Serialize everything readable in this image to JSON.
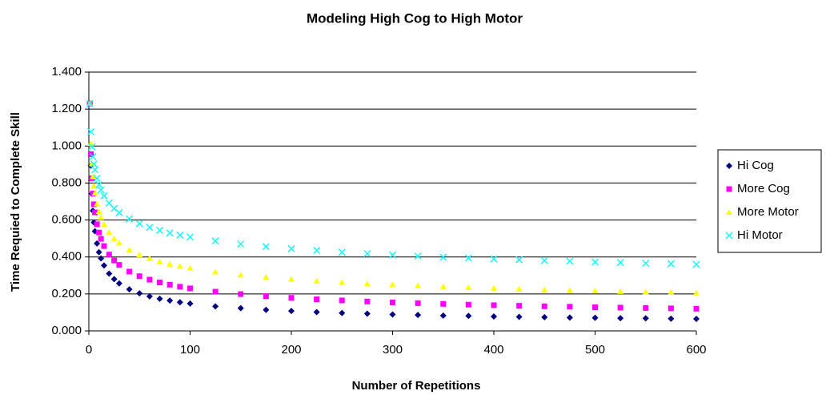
{
  "chart_data": {
    "type": "scatter",
    "title": "Modeling High Cog to High Motor",
    "x_label": "Number of Repetitions",
    "y_label": "Time Requied to Complete Skill",
    "x": [
      1,
      2,
      3,
      4,
      5,
      6,
      8,
      10,
      12,
      15,
      20,
      25,
      30,
      40,
      50,
      60,
      70,
      80,
      90,
      100,
      125,
      150,
      175,
      200,
      225,
      250,
      275,
      300,
      325,
      350,
      375,
      400,
      425,
      450,
      475,
      500,
      525,
      550,
      575,
      600
    ],
    "series": [
      {
        "name": "Hi Cog",
        "color": "#000080",
        "marker": "diamond",
        "values": [
          1.23,
          0.894,
          0.742,
          0.65,
          0.587,
          0.539,
          0.473,
          0.426,
          0.392,
          0.354,
          0.31,
          0.28,
          0.257,
          0.225,
          0.203,
          0.187,
          0.174,
          0.164,
          0.155,
          0.148,
          0.133,
          0.123,
          0.114,
          0.108,
          0.102,
          0.097,
          0.093,
          0.089,
          0.086,
          0.083,
          0.081,
          0.078,
          0.076,
          0.074,
          0.072,
          0.071,
          0.069,
          0.068,
          0.066,
          0.065
        ]
      },
      {
        "name": "More Cog",
        "color": "#FF00FF",
        "marker": "square",
        "values": [
          1.23,
          0.956,
          0.825,
          0.743,
          0.685,
          0.641,
          0.577,
          0.532,
          0.498,
          0.459,
          0.413,
          0.381,
          0.357,
          0.321,
          0.296,
          0.277,
          0.262,
          0.25,
          0.239,
          0.23,
          0.212,
          0.199,
          0.188,
          0.179,
          0.171,
          0.165,
          0.159,
          0.154,
          0.15,
          0.146,
          0.142,
          0.139,
          0.136,
          0.133,
          0.131,
          0.128,
          0.126,
          0.124,
          0.122,
          0.12
        ]
      },
      {
        "name": "More Motor",
        "color": "#FFFF00",
        "marker": "triangle",
        "values": [
          1.23,
          1.013,
          0.904,
          0.834,
          0.784,
          0.745,
          0.687,
          0.646,
          0.613,
          0.576,
          0.532,
          0.499,
          0.475,
          0.438,
          0.411,
          0.391,
          0.374,
          0.361,
          0.349,
          0.339,
          0.318,
          0.302,
          0.29,
          0.279,
          0.27,
          0.262,
          0.255,
          0.249,
          0.244,
          0.239,
          0.234,
          0.23,
          0.226,
          0.222,
          0.219,
          0.216,
          0.213,
          0.21,
          0.208,
          0.205
        ]
      },
      {
        "name": "Hi Motor",
        "color": "#00FFFF",
        "marker": "x",
        "values": [
          1.23,
          1.077,
          0.996,
          0.943,
          0.903,
          0.872,
          0.825,
          0.791,
          0.763,
          0.731,
          0.692,
          0.663,
          0.64,
          0.606,
          0.58,
          0.56,
          0.544,
          0.53,
          0.518,
          0.508,
          0.487,
          0.47,
          0.456,
          0.445,
          0.435,
          0.426,
          0.418,
          0.411,
          0.405,
          0.399,
          0.394,
          0.389,
          0.385,
          0.381,
          0.377,
          0.373,
          0.37,
          0.366,
          0.363,
          0.36
        ]
      }
    ],
    "xlim": [
      0,
      600
    ],
    "xticks": [
      0,
      100,
      200,
      300,
      400,
      500,
      600
    ],
    "ylim": [
      0,
      1.4
    ],
    "yticks": [
      {
        "value": 0,
        "label": "0.000"
      },
      {
        "value": 0.2,
        "label": "0.200"
      },
      {
        "value": 0.4,
        "label": "0.400"
      },
      {
        "value": 0.6,
        "label": "0.600"
      },
      {
        "value": 0.8,
        "label": "0.800"
      },
      {
        "value": 1.0,
        "label": "1.000"
      },
      {
        "value": 1.2,
        "label": "1.200"
      },
      {
        "value": 1.4,
        "label": "1.400"
      }
    ],
    "grid": true,
    "legend": "right"
  }
}
